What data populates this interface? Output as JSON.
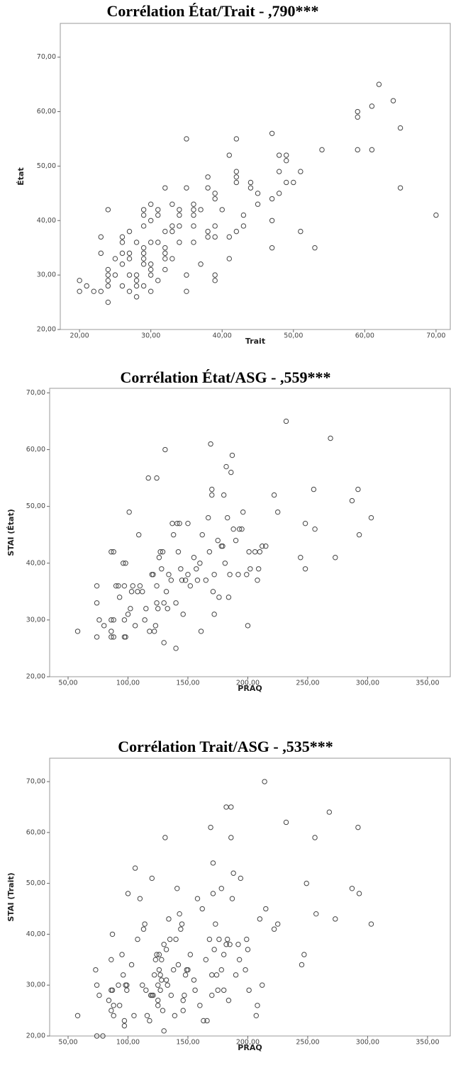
{
  "chart_data": [
    {
      "type": "scatter",
      "title": "Corrélation État/Trait - ,790***",
      "xlabel": "Trait",
      "ylabel": "État",
      "marker_color": "#444444",
      "xlim": [
        17.3,
        72
      ],
      "ylim": [
        20,
        76.2
      ],
      "xticks": [
        {
          "value": 20,
          "label": "20,00"
        },
        {
          "value": 30,
          "label": "30,00"
        },
        {
          "value": 40,
          "label": "40,00"
        },
        {
          "value": 50,
          "label": "50,00"
        },
        {
          "value": 60,
          "label": "60,00"
        },
        {
          "value": 70,
          "label": "70,00"
        }
      ],
      "yticks": [
        {
          "value": 20,
          "label": "20,00"
        },
        {
          "value": 30,
          "label": "30,00"
        },
        {
          "value": 40,
          "label": "40,00"
        },
        {
          "value": 50,
          "label": "50,00"
        },
        {
          "value": 60,
          "label": "60,00"
        },
        {
          "value": 70,
          "label": "70,00"
        }
      ],
      "x": [
        20,
        20,
        21,
        22,
        23,
        23,
        23,
        24,
        24,
        24,
        24,
        24,
        24,
        25,
        25,
        26,
        26,
        26,
        26,
        26,
        27,
        27,
        27,
        27,
        27,
        28,
        28,
        28,
        28,
        28,
        29,
        29,
        29,
        29,
        29,
        29,
        29,
        29,
        30,
        30,
        30,
        30,
        30,
        30,
        30,
        31,
        31,
        31,
        31,
        32,
        32,
        32,
        32,
        32,
        32,
        33,
        33,
        33,
        33,
        34,
        34,
        34,
        34,
        35,
        35,
        35,
        35,
        36,
        36,
        36,
        36,
        36,
        37,
        37,
        38,
        38,
        38,
        38,
        39,
        39,
        39,
        39,
        39,
        39,
        40,
        41,
        41,
        41,
        42,
        42,
        42,
        42,
        42,
        43,
        43,
        44,
        44,
        45,
        45,
        47,
        47,
        47,
        47,
        48,
        48,
        48,
        49,
        49,
        49,
        50,
        51,
        51,
        53,
        54,
        59,
        59,
        59,
        61,
        61,
        62,
        64,
        65,
        65,
        70
      ],
      "values": [
        29,
        27,
        28,
        27,
        37,
        34,
        27,
        42,
        31,
        30,
        29,
        28,
        25,
        30,
        33,
        37,
        36,
        34,
        32,
        28,
        38,
        34,
        33,
        30,
        27,
        36,
        30,
        29,
        28,
        26,
        42,
        41,
        39,
        35,
        34,
        33,
        32,
        28,
        43,
        40,
        36,
        32,
        31,
        30,
        27,
        42,
        41,
        36,
        29,
        46,
        38,
        35,
        34,
        33,
        31,
        43,
        39,
        38,
        33,
        42,
        41,
        39,
        36,
        55,
        46,
        30,
        27,
        43,
        42,
        41,
        39,
        36,
        42,
        32,
        48,
        46,
        38,
        37,
        45,
        44,
        39,
        37,
        30,
        29,
        42,
        52,
        37,
        33,
        55,
        49,
        48,
        47,
        38,
        41,
        39,
        47,
        46,
        45,
        43,
        56,
        44,
        40,
        35,
        52,
        49,
        45,
        52,
        51,
        47,
        47,
        49,
        38,
        35,
        53,
        60,
        59,
        53,
        61,
        53,
        65,
        62,
        57,
        46,
        41
      ]
    },
    {
      "type": "scatter",
      "title": "Corrélation État/ASG - ,559***",
      "xlabel": "PRAQ",
      "ylabel": "STAI (État)",
      "marker_color": "#444444",
      "xlim": [
        34.6,
        369
      ],
      "ylim": [
        20,
        70.8
      ],
      "xticks": [
        {
          "value": 50,
          "label": "50,00"
        },
        {
          "value": 100,
          "label": "100,00"
        },
        {
          "value": 150,
          "label": "150,00"
        },
        {
          "value": 200,
          "label": "200,00"
        },
        {
          "value": 250,
          "label": "250,00"
        },
        {
          "value": 300,
          "label": "300,00"
        },
        {
          "value": 350,
          "label": "350,00"
        }
      ],
      "yticks": [
        {
          "value": 20,
          "label": "20,00"
        },
        {
          "value": 30,
          "label": "30,00"
        },
        {
          "value": 40,
          "label": "40,00"
        },
        {
          "value": 50,
          "label": "50,00"
        },
        {
          "value": 60,
          "label": "60,00"
        },
        {
          "value": 70,
          "label": "70,00"
        }
      ],
      "x": [
        58,
        74,
        74,
        74,
        76,
        80,
        86,
        88,
        86,
        88,
        86,
        86,
        88,
        90,
        92,
        93,
        96,
        98,
        97,
        97,
        97,
        98,
        100,
        101,
        102,
        103,
        104,
        106,
        108,
        109,
        110,
        112,
        114,
        115,
        117,
        118,
        120,
        121,
        122,
        123,
        124,
        124,
        124,
        125,
        126,
        127,
        128,
        129,
        130,
        130,
        131,
        132,
        133,
        134,
        136,
        137,
        138,
        140,
        140,
        141,
        142,
        143,
        144,
        145,
        146,
        148,
        150,
        150,
        152,
        155,
        157,
        158,
        160,
        161,
        162,
        165,
        167,
        168,
        169,
        170,
        170,
        171,
        172,
        172,
        175,
        176,
        178,
        179,
        180,
        181,
        182,
        183,
        184,
        185,
        186,
        187,
        188,
        190,
        192,
        193,
        195,
        196,
        199,
        200,
        201,
        202,
        206,
        208,
        209,
        210,
        212,
        215,
        222,
        225,
        244,
        248,
        248,
        255,
        256,
        273,
        269,
        287,
        292,
        293,
        303,
        232
      ],
      "values": [
        28,
        36,
        33,
        27,
        30,
        29,
        42,
        42,
        30,
        30,
        28,
        27,
        27,
        36,
        36,
        34,
        40,
        40,
        36,
        30,
        27,
        27,
        31,
        49,
        32,
        35,
        36,
        29,
        35,
        45,
        36,
        35,
        30,
        32,
        55,
        28,
        38,
        38,
        28,
        29,
        55,
        36,
        33,
        32,
        41,
        42,
        39,
        42,
        26,
        33,
        60,
        35,
        32,
        38,
        37,
        47,
        45,
        25,
        33,
        47,
        42,
        47,
        39,
        37,
        31,
        37,
        47,
        38,
        36,
        41,
        39,
        37,
        40,
        28,
        45,
        37,
        48,
        42,
        61,
        53,
        52,
        35,
        31,
        38,
        44,
        34,
        43,
        43,
        52,
        40,
        57,
        48,
        34,
        38,
        56,
        59,
        46,
        44,
        38,
        46,
        46,
        49,
        38,
        29,
        42,
        39,
        42,
        37,
        39,
        42,
        43,
        43,
        52,
        49,
        41,
        47,
        39,
        53,
        46,
        41,
        62,
        51,
        53,
        45,
        48,
        65
      ]
    },
    {
      "type": "scatter",
      "title": "Corrélation Trait/ASG - ,535***",
      "xlabel": "PRAQ",
      "ylabel": "STAI (Trait)",
      "marker_color": "#444444",
      "xlim": [
        34.6,
        369
      ],
      "ylim": [
        20,
        74.6
      ],
      "xticks": [
        {
          "value": 50,
          "label": "50,00"
        },
        {
          "value": 100,
          "label": "100,00"
        },
        {
          "value": 150,
          "label": "150,00"
        },
        {
          "value": 200,
          "label": "200,00"
        },
        {
          "value": 250,
          "label": "250,00"
        },
        {
          "value": 300,
          "label": "300,00"
        },
        {
          "value": 350,
          "label": "350,00"
        }
      ],
      "yticks": [
        {
          "value": 20,
          "label": "20,00"
        },
        {
          "value": 30,
          "label": "30,00"
        },
        {
          "value": 40,
          "label": "40,00"
        },
        {
          "value": 50,
          "label": "50,00"
        },
        {
          "value": 60,
          "label": "60,00"
        },
        {
          "value": 70,
          "label": "70,00"
        }
      ],
      "x": [
        58,
        73,
        74,
        74,
        76,
        79,
        84,
        86,
        86,
        87,
        86,
        87,
        88,
        88,
        92,
        93,
        95,
        96,
        97,
        97,
        98,
        99,
        99,
        100,
        103,
        105,
        106,
        108,
        110,
        112,
        113,
        114,
        115,
        116,
        118,
        119,
        120,
        120,
        121,
        122,
        123,
        124,
        125,
        125,
        125,
        126,
        126,
        127,
        127,
        128,
        128,
        129,
        130,
        130,
        131,
        132,
        132,
        133,
        134,
        135,
        136,
        138,
        139,
        140,
        141,
        142,
        143,
        144,
        145,
        146,
        146,
        147,
        148,
        149,
        150,
        152,
        155,
        156,
        158,
        160,
        162,
        163,
        165,
        166,
        168,
        169,
        170,
        170,
        171,
        171,
        172,
        173,
        174,
        175,
        176,
        178,
        178,
        180,
        180,
        182,
        182,
        183,
        184,
        185,
        186,
        186,
        187,
        188,
        190,
        192,
        193,
        194,
        198,
        199,
        200,
        201,
        207,
        208,
        210,
        212,
        214,
        215,
        222,
        225,
        232,
        245,
        247,
        249,
        256,
        257,
        268,
        273,
        287,
        292,
        293,
        303
      ],
      "values": [
        24,
        33,
        30,
        20,
        28,
        20,
        27,
        29,
        25,
        29,
        35,
        40,
        24,
        26,
        30,
        26,
        36,
        32,
        23,
        22,
        30,
        30,
        29,
        48,
        34,
        24,
        53,
        39,
        47,
        30,
        41,
        42,
        29,
        24,
        23,
        28,
        51,
        28,
        28,
        32,
        35,
        36,
        30,
        27,
        26,
        36,
        33,
        32,
        29,
        35,
        31,
        25,
        38,
        21,
        59,
        31,
        37,
        30,
        43,
        39,
        28,
        33,
        24,
        39,
        49,
        34,
        44,
        41,
        42,
        27,
        25,
        28,
        32,
        33,
        33,
        36,
        31,
        29,
        47,
        26,
        45,
        23,
        35,
        23,
        39,
        61,
        32,
        28,
        54,
        48,
        37,
        42,
        32,
        29,
        39,
        33,
        49,
        36,
        29,
        65,
        38,
        39,
        27,
        38,
        65,
        59,
        47,
        52,
        32,
        38,
        35,
        51,
        33,
        39,
        37,
        29,
        24,
        26,
        43,
        30,
        70,
        45,
        41,
        42,
        62,
        34,
        36,
        50,
        59,
        44,
        64,
        43,
        49,
        61,
        48,
        42
      ]
    }
  ]
}
